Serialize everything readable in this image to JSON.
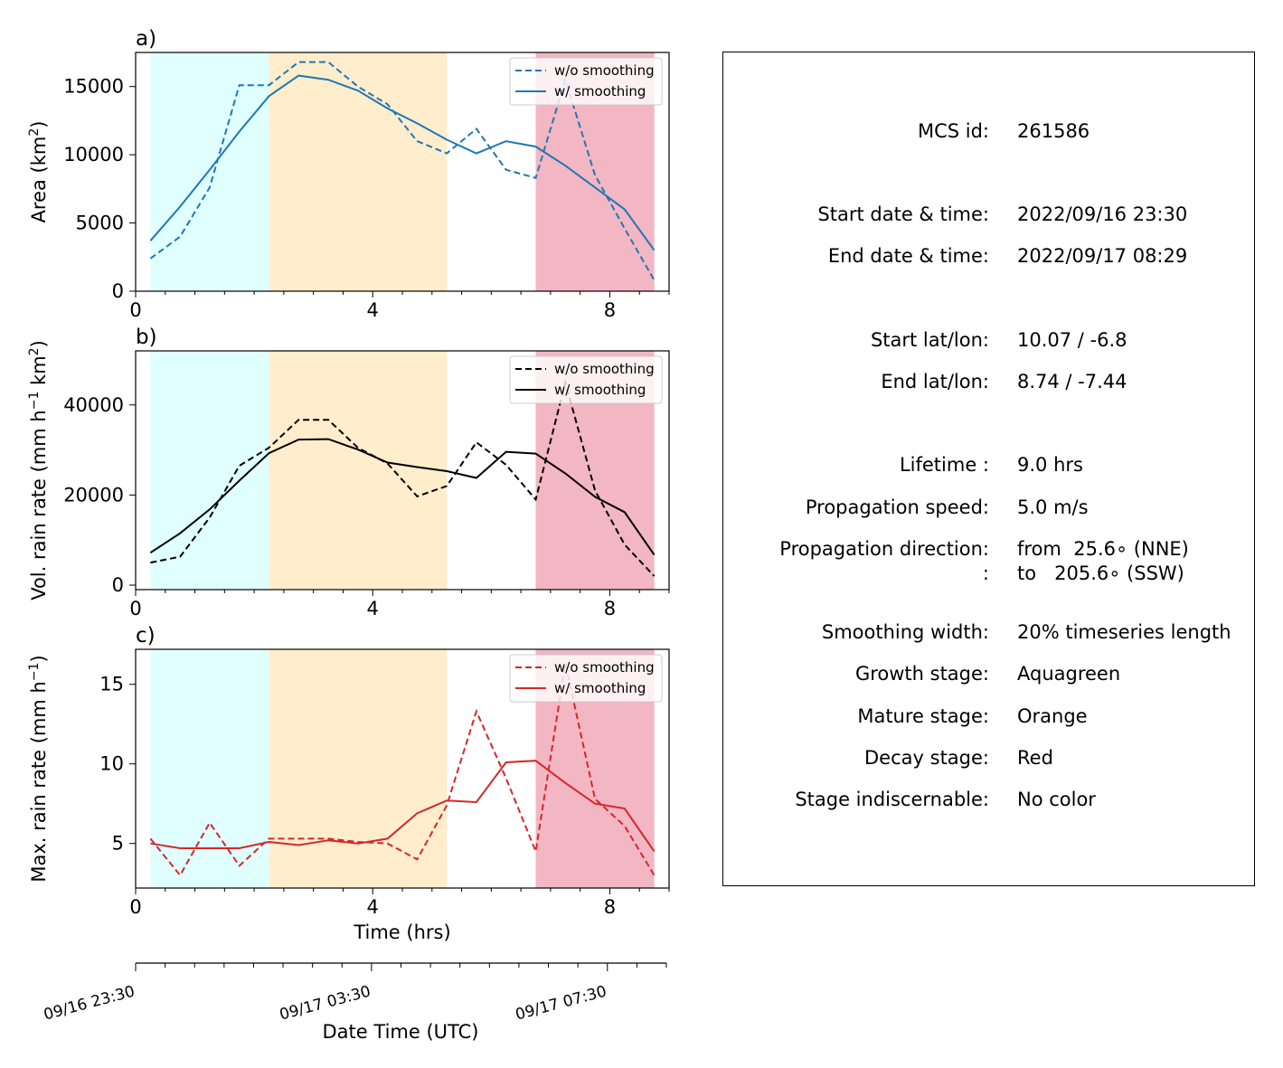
{
  "colors": {
    "growth": "#e0ffff",
    "mature": "#ffedcc",
    "decay": "#f3b6c3",
    "area": "#1f77b4",
    "volrain": "#000000",
    "maxrain": "#d62728"
  },
  "chart_data": [
    {
      "type": "line",
      "panel_label": "a)",
      "xlabel": "",
      "ylabel": "Area  (km²)",
      "xlim": [
        0,
        9
      ],
      "ylim": [
        0,
        17500
      ],
      "xticks": [
        0,
        4,
        8
      ],
      "yticks": [
        0,
        5000,
        10000,
        15000
      ],
      "ytick_labels": [
        "0",
        "5000",
        "10000",
        "15000"
      ],
      "color": "#1f77b4",
      "stages": [
        {
          "stage": "growth",
          "x0": 0.25,
          "x1": 2.25
        },
        {
          "stage": "mature",
          "x0": 2.25,
          "x1": 5.25
        },
        {
          "stage": "decay",
          "x0": 6.75,
          "x1": 8.75
        }
      ],
      "legend_loc": "upper right",
      "x": [
        0.25,
        0.75,
        1.25,
        1.75,
        2.25,
        2.75,
        3.25,
        3.75,
        4.25,
        4.75,
        5.25,
        5.75,
        6.25,
        6.75,
        7.25,
        7.75,
        8.25,
        8.75
      ],
      "series": [
        {
          "name": "w/o smoothing",
          "style": "dashed",
          "values": [
            2400,
            4000,
            7600,
            15100,
            15100,
            16800,
            16800,
            15000,
            13700,
            11000,
            10100,
            11900,
            8900,
            8300,
            15500,
            8500,
            4600,
            800
          ]
        },
        {
          "name": "w/ smoothing",
          "style": "solid",
          "values": [
            3700,
            6200,
            8900,
            11700,
            14300,
            15800,
            15500,
            14700,
            13400,
            12300,
            11100,
            10100,
            11000,
            10600,
            9200,
            7600,
            6000,
            3000
          ]
        }
      ]
    },
    {
      "type": "line",
      "panel_label": "b)",
      "xlabel": "",
      "ylabel": "Vol. rain rate (mm h⁻¹ km²)",
      "xlim": [
        0,
        9
      ],
      "ylim": [
        -1000,
        52000
      ],
      "xticks": [
        0,
        4,
        8
      ],
      "yticks": [
        0,
        20000,
        40000
      ],
      "ytick_labels": [
        "0",
        "20000",
        "40000"
      ],
      "color": "#000000",
      "stages": [
        {
          "stage": "growth",
          "x0": 0.25,
          "x1": 2.25
        },
        {
          "stage": "mature",
          "x0": 2.25,
          "x1": 5.25
        },
        {
          "stage": "decay",
          "x0": 6.75,
          "x1": 8.75
        }
      ],
      "legend_loc": "upper right",
      "x": [
        0.25,
        0.75,
        1.25,
        1.75,
        2.25,
        2.75,
        3.25,
        3.75,
        4.25,
        4.75,
        5.25,
        5.75,
        6.25,
        6.75,
        7.25,
        7.75,
        8.25,
        8.75
      ],
      "series": [
        {
          "name": "w/o smoothing",
          "style": "dashed",
          "values": [
            5000,
            6300,
            15000,
            26500,
            30500,
            36700,
            36700,
            30500,
            27000,
            19700,
            22000,
            31700,
            26700,
            19000,
            45000,
            21000,
            9000,
            2000
          ]
        },
        {
          "name": "w/ smoothing",
          "style": "solid",
          "values": [
            7200,
            11500,
            16800,
            23200,
            29300,
            32300,
            32400,
            30100,
            27200,
            26200,
            25300,
            23800,
            29600,
            29200,
            24800,
            19600,
            16200,
            6700
          ]
        }
      ]
    },
    {
      "type": "line",
      "panel_label": "c)",
      "xlabel": "Time (hrs)",
      "ylabel": "Max. rain rate  (mm h⁻¹)",
      "xlim": [
        0,
        9
      ],
      "ylim": [
        2.2,
        17.2
      ],
      "xticks": [
        0,
        4,
        8
      ],
      "yticks": [
        5,
        10,
        15
      ],
      "ytick_labels": [
        "5",
        "10",
        "15"
      ],
      "color": "#d62728",
      "stages": [
        {
          "stage": "growth",
          "x0": 0.25,
          "x1": 2.25
        },
        {
          "stage": "mature",
          "x0": 2.25,
          "x1": 5.25
        },
        {
          "stage": "decay",
          "x0": 6.75,
          "x1": 8.75
        }
      ],
      "legend_loc": "upper right",
      "x": [
        0.25,
        0.75,
        1.25,
        1.75,
        2.25,
        2.75,
        3.25,
        3.75,
        4.25,
        4.75,
        5.25,
        5.75,
        6.25,
        6.75,
        7.25,
        7.75,
        8.25,
        8.75
      ],
      "series": [
        {
          "name": "w/o smoothing",
          "style": "dashed",
          "values": [
            5.3,
            3.0,
            6.3,
            3.6,
            5.3,
            5.3,
            5.3,
            5.1,
            5.0,
            4.0,
            7.4,
            13.3,
            9.1,
            4.5,
            16.3,
            7.8,
            6.1,
            3.0
          ]
        },
        {
          "name": "w/ smoothing",
          "style": "solid",
          "values": [
            5.0,
            4.7,
            4.7,
            4.7,
            5.1,
            4.9,
            5.2,
            5.0,
            5.3,
            6.9,
            7.7,
            7.6,
            10.1,
            10.2,
            8.8,
            7.5,
            7.2,
            4.5
          ]
        }
      ]
    }
  ],
  "datetime_axis": {
    "label": "Date Time (UTC)",
    "xlim": [
      0,
      9
    ],
    "major_ticks": [
      0,
      4,
      8
    ],
    "tick_labels": [
      "09/16 23:30",
      "09/17 03:30",
      "09/17 07:30"
    ]
  },
  "info": {
    "rows": [
      {
        "label": "MCS id:",
        "value": "261586"
      },
      {
        "label": "Start date & time:",
        "value": "2022/09/16 23:30"
      },
      {
        "label": "End date & time:",
        "value": "2022/09/17 08:29"
      },
      {
        "label": "Start lat/lon:",
        "value": "10.07 / -6.8"
      },
      {
        "label": "End lat/lon:",
        "value": "8.74 / -7.44"
      },
      {
        "label": "Lifetime :",
        "value": "9.0 hrs"
      },
      {
        "label": "Propagation speed:",
        "value": "5.0 m/s"
      },
      {
        "label": "Propagation direction:",
        "value": "from  25.6∘ (NNE)"
      },
      {
        "label": ":",
        "value": "to   205.6∘ (SSW)"
      },
      {
        "label": "Smoothing width:",
        "value": "20% timeseries length"
      },
      {
        "label": "Growth stage:",
        "value": "Aquagreen"
      },
      {
        "label": "Mature stage:",
        "value": "Orange"
      },
      {
        "label": "Decay stage:",
        "value": "Red"
      },
      {
        "label": "Stage indiscernable:",
        "value": "No color"
      }
    ]
  }
}
